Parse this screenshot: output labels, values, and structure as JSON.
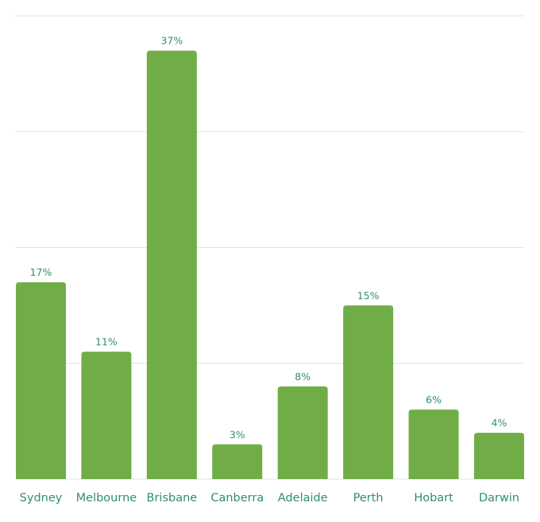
{
  "chart_data": {
    "type": "bar",
    "categories": [
      "Sydney",
      "Melbourne",
      "Brisbane",
      "Canberra",
      "Adelaide",
      "Perth",
      "Hobart",
      "Darwin"
    ],
    "values": [
      17,
      11,
      37,
      3,
      8,
      15,
      6,
      4
    ],
    "data_labels": [
      "17%",
      "11%",
      "37%",
      "3%",
      "8%",
      "15%",
      "6%",
      "4%"
    ],
    "ylim": [
      0,
      40
    ],
    "yticks": [
      0,
      10,
      20,
      30,
      40
    ],
    "grid": true,
    "title": "",
    "xlabel": "",
    "ylabel": "",
    "colors": {
      "bar": "#70ad47",
      "text": "#2f8f6c",
      "grid": "#d3ebe2"
    }
  }
}
